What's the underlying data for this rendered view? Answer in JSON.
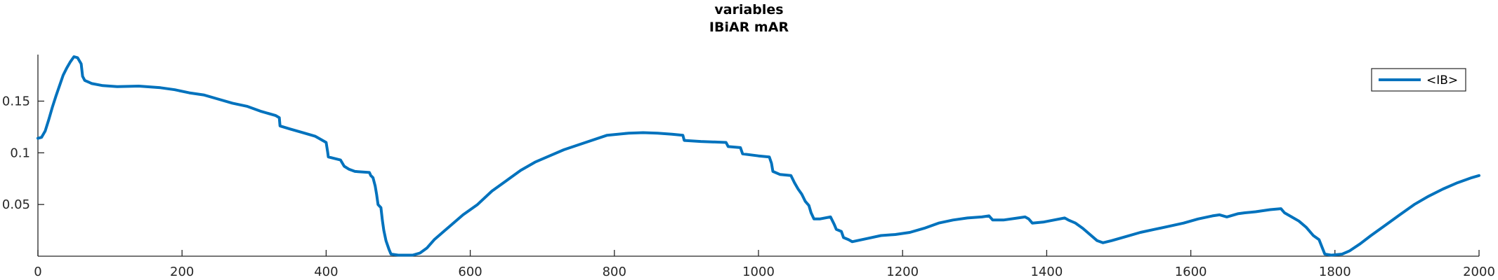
{
  "chart_data": {
    "type": "line",
    "title_lines": [
      "variables",
      "IBiAR mAR"
    ],
    "xlabel": "",
    "ylabel": "",
    "xlim": [
      0,
      2000
    ],
    "ylim": [
      0,
      0.195
    ],
    "xticks": [
      0,
      200,
      400,
      600,
      800,
      1000,
      1200,
      1400,
      1600,
      1800,
      2000
    ],
    "xtick_labels": [
      "0",
      "200",
      "400",
      "600",
      "800",
      "1000",
      "1200",
      "1400",
      "1600",
      "1800",
      "2000"
    ],
    "yticks": [
      0.05,
      0.1,
      0.15
    ],
    "ytick_labels": [
      "0.05",
      "0.1",
      "0.15"
    ],
    "grid": false,
    "legend_position": "top-right",
    "series": [
      {
        "name": "<IB>",
        "color": "#0072BD",
        "points": [
          [
            0,
            0.114
          ],
          [
            5,
            0.115
          ],
          [
            10,
            0.121
          ],
          [
            15,
            0.132
          ],
          [
            20,
            0.144
          ],
          [
            25,
            0.155
          ],
          [
            30,
            0.165
          ],
          [
            35,
            0.175
          ],
          [
            40,
            0.182
          ],
          [
            45,
            0.188
          ],
          [
            50,
            0.193
          ],
          [
            55,
            0.192
          ],
          [
            60,
            0.186
          ],
          [
            62,
            0.174
          ],
          [
            65,
            0.17
          ],
          [
            75,
            0.167
          ],
          [
            90,
            0.165
          ],
          [
            110,
            0.164
          ],
          [
            140,
            0.1645
          ],
          [
            170,
            0.163
          ],
          [
            190,
            0.161
          ],
          [
            210,
            0.158
          ],
          [
            230,
            0.156
          ],
          [
            250,
            0.152
          ],
          [
            270,
            0.148
          ],
          [
            290,
            0.145
          ],
          [
            310,
            0.14
          ],
          [
            330,
            0.136
          ],
          [
            335,
            0.134
          ],
          [
            336,
            0.126
          ],
          [
            350,
            0.123
          ],
          [
            370,
            0.119
          ],
          [
            385,
            0.116
          ],
          [
            390,
            0.114
          ],
          [
            400,
            0.11
          ],
          [
            402,
            0.101
          ],
          [
            403,
            0.096
          ],
          [
            420,
            0.093
          ],
          [
            425,
            0.087
          ],
          [
            432,
            0.084
          ],
          [
            440,
            0.082
          ],
          [
            460,
            0.081
          ],
          [
            462,
            0.078
          ],
          [
            465,
            0.076
          ],
          [
            468,
            0.068
          ],
          [
            470,
            0.06
          ],
          [
            472,
            0.05
          ],
          [
            476,
            0.047
          ],
          [
            478,
            0.035
          ],
          [
            480,
            0.025
          ],
          [
            483,
            0.015
          ],
          [
            487,
            0.007
          ],
          [
            490,
            0.002
          ],
          [
            500,
            0.001
          ],
          [
            520,
            0.001
          ],
          [
            530,
            0.003
          ],
          [
            540,
            0.008
          ],
          [
            550,
            0.016
          ],
          [
            570,
            0.028
          ],
          [
            590,
            0.04
          ],
          [
            610,
            0.05
          ],
          [
            630,
            0.063
          ],
          [
            650,
            0.073
          ],
          [
            670,
            0.083
          ],
          [
            690,
            0.091
          ],
          [
            710,
            0.097
          ],
          [
            730,
            0.103
          ],
          [
            760,
            0.11
          ],
          [
            790,
            0.117
          ],
          [
            820,
            0.119
          ],
          [
            840,
            0.1195
          ],
          [
            860,
            0.119
          ],
          [
            880,
            0.118
          ],
          [
            895,
            0.117
          ],
          [
            897,
            0.112
          ],
          [
            920,
            0.111
          ],
          [
            955,
            0.11
          ],
          [
            958,
            0.106
          ],
          [
            975,
            0.105
          ],
          [
            978,
            0.099
          ],
          [
            1000,
            0.097
          ],
          [
            1015,
            0.096
          ],
          [
            1018,
            0.09
          ],
          [
            1020,
            0.082
          ],
          [
            1030,
            0.079
          ],
          [
            1045,
            0.078
          ],
          [
            1050,
            0.071
          ],
          [
            1055,
            0.065
          ],
          [
            1060,
            0.06
          ],
          [
            1065,
            0.053
          ],
          [
            1070,
            0.049
          ],
          [
            1073,
            0.042
          ],
          [
            1077,
            0.036
          ],
          [
            1085,
            0.036
          ],
          [
            1100,
            0.038
          ],
          [
            1105,
            0.031
          ],
          [
            1108,
            0.026
          ],
          [
            1115,
            0.024
          ],
          [
            1118,
            0.018
          ],
          [
            1125,
            0.016
          ],
          [
            1130,
            0.014
          ],
          [
            1150,
            0.017
          ],
          [
            1170,
            0.02
          ],
          [
            1190,
            0.021
          ],
          [
            1210,
            0.023
          ],
          [
            1230,
            0.027
          ],
          [
            1250,
            0.032
          ],
          [
            1270,
            0.035
          ],
          [
            1290,
            0.037
          ],
          [
            1310,
            0.038
          ],
          [
            1320,
            0.039
          ],
          [
            1325,
            0.035
          ],
          [
            1340,
            0.035
          ],
          [
            1360,
            0.037
          ],
          [
            1370,
            0.038
          ],
          [
            1375,
            0.036
          ],
          [
            1380,
            0.032
          ],
          [
            1395,
            0.033
          ],
          [
            1410,
            0.035
          ],
          [
            1425,
            0.037
          ],
          [
            1430,
            0.035
          ],
          [
            1440,
            0.032
          ],
          [
            1450,
            0.027
          ],
          [
            1460,
            0.021
          ],
          [
            1470,
            0.015
          ],
          [
            1478,
            0.013
          ],
          [
            1490,
            0.015
          ],
          [
            1510,
            0.019
          ],
          [
            1530,
            0.023
          ],
          [
            1550,
            0.026
          ],
          [
            1570,
            0.029
          ],
          [
            1590,
            0.032
          ],
          [
            1610,
            0.036
          ],
          [
            1630,
            0.039
          ],
          [
            1640,
            0.04
          ],
          [
            1650,
            0.038
          ],
          [
            1665,
            0.041
          ],
          [
            1675,
            0.042
          ],
          [
            1690,
            0.043
          ],
          [
            1710,
            0.045
          ],
          [
            1725,
            0.046
          ],
          [
            1730,
            0.042
          ],
          [
            1740,
            0.038
          ],
          [
            1750,
            0.034
          ],
          [
            1760,
            0.028
          ],
          [
            1770,
            0.02
          ],
          [
            1778,
            0.016
          ],
          [
            1782,
            0.009
          ],
          [
            1786,
            0.002
          ],
          [
            1795,
            0.001
          ],
          [
            1810,
            0.002
          ],
          [
            1820,
            0.005
          ],
          [
            1835,
            0.012
          ],
          [
            1850,
            0.02
          ],
          [
            1870,
            0.03
          ],
          [
            1890,
            0.04
          ],
          [
            1910,
            0.05
          ],
          [
            1930,
            0.058
          ],
          [
            1950,
            0.065
          ],
          [
            1970,
            0.071
          ],
          [
            1990,
            0.076
          ],
          [
            2000,
            0.078
          ]
        ]
      }
    ]
  }
}
